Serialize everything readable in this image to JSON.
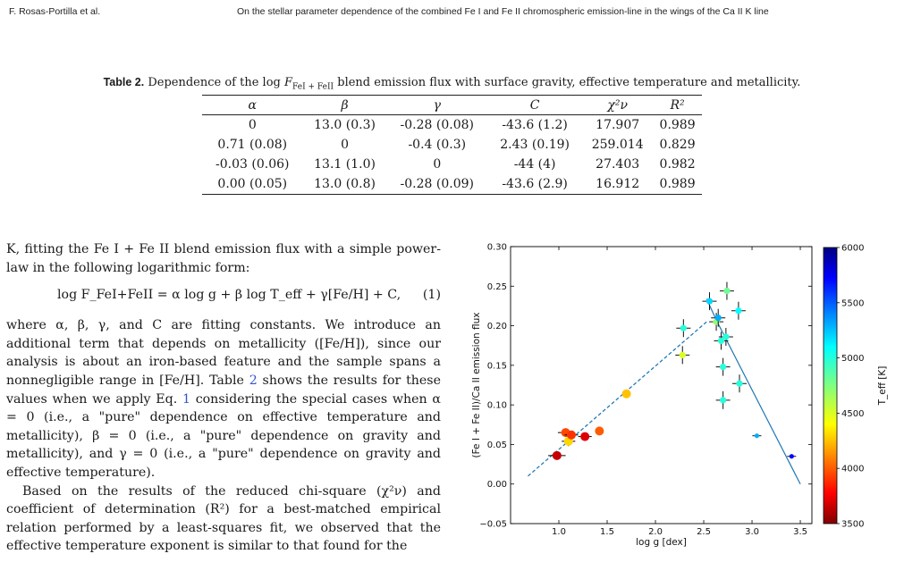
{
  "running_head": {
    "authors": "F. Rosas-Portilla et al.",
    "title": "On the stellar parameter dependence of the combined Fe I and Fe II chromospheric emission-line in the wings of the Ca II K line"
  },
  "table": {
    "label": "Table 2.",
    "caption_pre": "Dependence of the log ",
    "caption_flux": "F",
    "caption_sub": "FeI + FeII",
    "caption_post": " blend emission flux with surface gravity, effective temperature and metallicity.",
    "headers": [
      "α",
      "β",
      "γ",
      "C",
      "χ²ν",
      "R²"
    ],
    "rows": [
      [
        "0",
        "13.0 (0.3)",
        "-0.28 (0.08)",
        "-43.6 (1.2)",
        "17.907",
        "0.989"
      ],
      [
        "0.71 (0.08)",
        "0",
        "-0.4 (0.3)",
        "2.43 (0.19)",
        "259.014",
        "0.829"
      ],
      [
        "-0.03 (0.06)",
        "13.1 (1.0)",
        "0",
        "-44 (4)",
        "27.403",
        "0.982"
      ],
      [
        "0.00 (0.05)",
        "13.0 (0.8)",
        "-0.28 (0.09)",
        "-43.6 (2.9)",
        "16.912",
        "0.989"
      ]
    ]
  },
  "text": {
    "para1": "K, fitting the Fe I + Fe II blend emission flux with a simple power-law in the following logarithmic form:",
    "equation": "log F_FeI+FeII = α log g + β log T_eff + γ[Fe/H] + C,",
    "equation_number": "(1)",
    "para2_a": "where α, β, γ, and C are fitting constants. We introduce an additional term that depends on metallicity ([Fe/H]), since our analysis is about an iron-based feature and the sample spans a nonnegligible range in [Fe/H]. Table ",
    "para2_ref_table": "2",
    "para2_b": " shows the results for these values when we apply Eq. ",
    "para2_ref_eq": "1",
    "para2_c": " considering the special cases when α = 0 (i.e., a \"pure\" dependence on effective temperature and metallicity), β = 0 (i.e., a \"pure\" dependence on gravity and metallicity), and γ = 0 (i.e., a \"pure\" dependence on gravity and effective temperature).",
    "para3": "Based on the results of the reduced chi-square (χ²ν) and coefficient of determination (R²) for a best-matched empirical relation performed by a least-squares fit, we observed that the effective temperature exponent is similar to that found for the"
  },
  "chart_data": {
    "type": "scatter",
    "xlabel": "log g [dex]",
    "ylabel": "(Fe I + Fe II)/Ca II emission flux",
    "colorbar_label": "T_eff [K]",
    "xlim": [
      0.5,
      3.62
    ],
    "ylim": [
      -0.05,
      0.3
    ],
    "xticks": [
      "1.0",
      "1.5",
      "2.0",
      "2.5",
      "3.0",
      "3.5"
    ],
    "yticks": [
      "−0.05",
      "0.00",
      "0.05",
      "0.10",
      "0.15",
      "0.20",
      "0.25",
      "0.30"
    ],
    "colorbar_range": [
      3500,
      6000
    ],
    "colorbar_ticks": [
      "3500",
      "4000",
      "4500",
      "5000",
      "5500",
      "6000"
    ],
    "circles": [
      {
        "x": 0.98,
        "y": 0.036,
        "teff": 3650,
        "xerr": 0.09,
        "yerr": 0.0
      },
      {
        "x": 1.07,
        "y": 0.065,
        "teff": 3950,
        "xerr": 0.08,
        "yerr": 0.0
      },
      {
        "x": 1.1,
        "y": 0.054,
        "teff": 4300,
        "xerr": 0.07,
        "yerr": 0.006
      },
      {
        "x": 1.13,
        "y": 0.062,
        "teff": 3900,
        "xerr": 0.07,
        "yerr": 0.0
      },
      {
        "x": 1.27,
        "y": 0.06,
        "teff": 3700,
        "xerr": 0.07,
        "yerr": 0.0
      },
      {
        "x": 1.42,
        "y": 0.067,
        "teff": 4000,
        "xerr": 0.0,
        "yerr": 0.0
      },
      {
        "x": 1.7,
        "y": 0.114,
        "teff": 4250,
        "xerr": 0.0,
        "yerr": 0.0
      }
    ],
    "crosses": [
      {
        "x": 2.28,
        "y": 0.163,
        "teff": 4500
      },
      {
        "x": 2.29,
        "y": 0.197,
        "teff": 5000
      },
      {
        "x": 2.56,
        "y": 0.231,
        "teff": 5200
      },
      {
        "x": 2.63,
        "y": 0.205,
        "teff": 4700
      },
      {
        "x": 2.65,
        "y": 0.21,
        "teff": 5300
      },
      {
        "x": 2.68,
        "y": 0.181,
        "teff": 5000
      },
      {
        "x": 2.7,
        "y": 0.148,
        "teff": 5000
      },
      {
        "x": 2.7,
        "y": 0.106,
        "teff": 5000
      },
      {
        "x": 2.73,
        "y": 0.186,
        "teff": 5000
      },
      {
        "x": 2.74,
        "y": 0.244,
        "teff": 4800
      },
      {
        "x": 2.86,
        "y": 0.219,
        "teff": 5100
      },
      {
        "x": 2.87,
        "y": 0.127,
        "teff": 5000
      }
    ],
    "small_points": [
      {
        "x": 3.05,
        "y": 0.061,
        "teff": 5300
      },
      {
        "x": 3.41,
        "y": 0.035,
        "teff": 5700
      }
    ],
    "fit_dashed": {
      "x": [
        0.68,
        2.54
      ],
      "y": [
        0.01,
        0.206
      ]
    },
    "fit_solid": {
      "x": [
        2.53,
        2.62,
        2.66,
        3.5
      ],
      "y": [
        0.234,
        0.21,
        0.2,
        0.0
      ]
    }
  }
}
